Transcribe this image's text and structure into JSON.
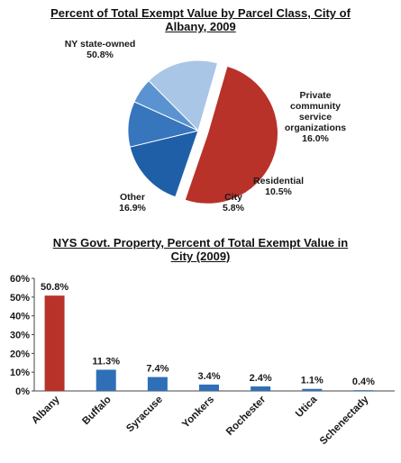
{
  "chart_data": [
    {
      "type": "pie",
      "title_lines": [
        "Percent of Total Exempt Value by Parcel Class, City of",
        "Albany, 2009"
      ],
      "slices": [
        {
          "label_lines": [
            "NY state-owned"
          ],
          "value": 50.8,
          "value_label": "50.8%",
          "color": "#b8322a",
          "exploded": true
        },
        {
          "label_lines": [
            "Private",
            "community",
            "service",
            "organizations"
          ],
          "value": 16.0,
          "value_label": "16.0%",
          "color": "#1f5fa8"
        },
        {
          "label_lines": [
            "Residential"
          ],
          "value": 10.5,
          "value_label": "10.5%",
          "color": "#3775bd"
        },
        {
          "label_lines": [
            "City"
          ],
          "value": 5.8,
          "value_label": "5.8%",
          "color": "#5a93cf"
        },
        {
          "label_lines": [
            "Other"
          ],
          "value": 16.9,
          "value_label": "16.9%",
          "color": "#a9c6e6"
        }
      ]
    },
    {
      "type": "bar",
      "title_lines": [
        "NYS Govt. Property, Percent of Total Exempt Value in",
        "City (2009)"
      ],
      "categories": [
        "Albany",
        "Buffalo",
        "Syracuse",
        "Yonkers",
        "Rochester",
        "Utica",
        "Schenectady"
      ],
      "values": [
        50.8,
        11.3,
        7.4,
        3.4,
        2.4,
        1.1,
        0.4
      ],
      "value_labels": [
        "50.8%",
        "11.3%",
        "7.4%",
        "3.4%",
        "2.4%",
        "1.1%",
        "0.4%"
      ],
      "colors": [
        "#b8322a",
        "#2f6fb8",
        "#2f6fb8",
        "#2f6fb8",
        "#2f6fb8",
        "#2f6fb8",
        "#2f6fb8"
      ],
      "ylim": [
        0,
        60
      ],
      "yticks": [
        "0%",
        "10%",
        "20%",
        "30%",
        "40%",
        "50%",
        "60%"
      ],
      "grid": false
    }
  ]
}
